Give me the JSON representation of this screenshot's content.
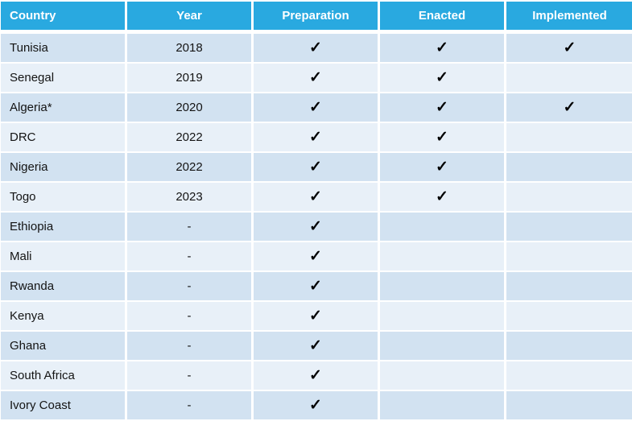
{
  "chart_data": {
    "type": "table",
    "columns": [
      "Country",
      "Year",
      "Preparation",
      "Enacted",
      "Implemented"
    ],
    "check_glyph": "✓",
    "rows": [
      {
        "country": "Tunisia",
        "year": "2018",
        "preparation": true,
        "enacted": true,
        "implemented": true
      },
      {
        "country": "Senegal",
        "year": "2019",
        "preparation": true,
        "enacted": true,
        "implemented": false
      },
      {
        "country": "Algeria*",
        "year": "2020",
        "preparation": true,
        "enacted": true,
        "implemented": true
      },
      {
        "country": "DRC",
        "year": "2022",
        "preparation": true,
        "enacted": true,
        "implemented": false
      },
      {
        "country": "Nigeria",
        "year": "2022",
        "preparation": true,
        "enacted": true,
        "implemented": false
      },
      {
        "country": "Togo",
        "year": "2023",
        "preparation": true,
        "enacted": true,
        "implemented": false
      },
      {
        "country": "Ethiopia",
        "year": "-",
        "preparation": true,
        "enacted": false,
        "implemented": false
      },
      {
        "country": "Mali",
        "year": "-",
        "preparation": true,
        "enacted": false,
        "implemented": false
      },
      {
        "country": "Rwanda",
        "year": "-",
        "preparation": true,
        "enacted": false,
        "implemented": false
      },
      {
        "country": "Kenya",
        "year": "-",
        "preparation": true,
        "enacted": false,
        "implemented": false
      },
      {
        "country": "Ghana",
        "year": "-",
        "preparation": true,
        "enacted": false,
        "implemented": false
      },
      {
        "country": "South Africa",
        "year": "-",
        "preparation": true,
        "enacted": false,
        "implemented": false
      },
      {
        "country": "Ivory Coast",
        "year": "-",
        "preparation": true,
        "enacted": false,
        "implemented": false
      }
    ]
  },
  "colors": {
    "header_bg": "#29A9E0",
    "header_text": "#FFFFFF",
    "row_odd_bg": "#D2E2F1",
    "row_even_bg": "#E8F0F8",
    "body_text": "#141414",
    "check_color": "#000000",
    "gridline": "#FFFFFF"
  }
}
